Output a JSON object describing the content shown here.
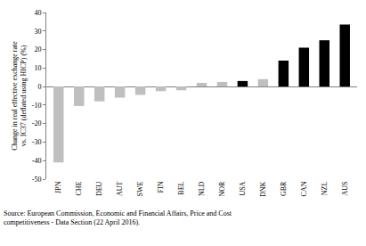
{
  "chart_data": {
    "type": "bar",
    "ylabel": [
      "Change in real effective exchange rate",
      "vs. IC37 (deflated using HICP) (%)"
    ],
    "categories": [
      "JPN",
      "CHE",
      "DEU",
      "AUT",
      "SWE",
      "FIN",
      "BEL",
      "NLD",
      "NOR",
      "USA",
      "DNK",
      "GBR",
      "CAN",
      "NZL",
      "AUS"
    ],
    "values": [
      -41,
      -10.5,
      -8,
      -6,
      -4.5,
      -2.5,
      -2,
      2,
      2.5,
      3,
      4,
      14,
      21,
      25,
      33.5
    ],
    "colors": [
      "#bfbfbf",
      "#bfbfbf",
      "#bfbfbf",
      "#bfbfbf",
      "#bfbfbf",
      "#bfbfbf",
      "#bfbfbf",
      "#bfbfbf",
      "#bfbfbf",
      "#000000",
      "#bfbfbf",
      "#000000",
      "#000000",
      "#000000",
      "#000000"
    ],
    "ylim": [
      -50,
      40
    ],
    "yticks": [
      -50,
      -40,
      -30,
      -20,
      -10,
      0,
      10,
      20,
      30,
      40
    ],
    "grid": false,
    "source": [
      "Source: European Commission, Economic and Financial Affairs, Price and Cost",
      "competitiveness - Data Section (22 April 2016)."
    ]
  }
}
